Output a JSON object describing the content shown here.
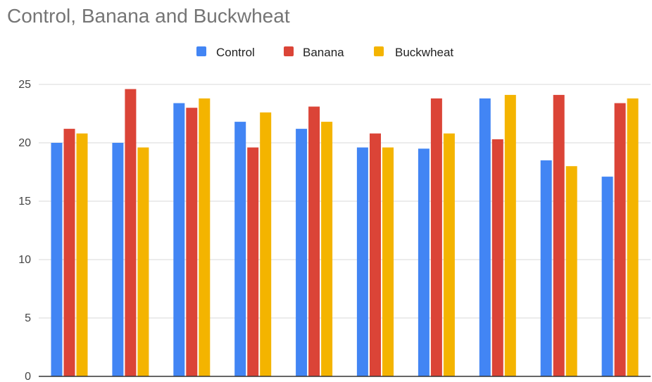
{
  "chart_data": {
    "type": "bar",
    "title": "Control, Banana and Buckwheat",
    "xlabel": "",
    "ylabel": "",
    "ylim": [
      0,
      25
    ],
    "yticks": [
      0,
      5,
      10,
      15,
      20,
      25
    ],
    "grid": true,
    "legend_position": "top-center",
    "categories": [
      "",
      "",
      "",
      "",
      "",
      "",
      "",
      "",
      "",
      ""
    ],
    "series": [
      {
        "name": "Control",
        "color": "#4285F4",
        "values": [
          20,
          20,
          23.4,
          21.8,
          21.2,
          19.6,
          19.5,
          23.8,
          18.5,
          17.1
        ]
      },
      {
        "name": "Banana",
        "color": "#DB4437",
        "values": [
          21.2,
          24.6,
          23,
          19.6,
          23.1,
          20.8,
          23.8,
          20.3,
          24.1,
          23.4
        ]
      },
      {
        "name": "Buckwheat",
        "color": "#F4B400",
        "values": [
          20.8,
          19.6,
          23.8,
          22.6,
          21.8,
          19.6,
          20.8,
          24.1,
          18,
          23.8
        ]
      }
    ]
  }
}
